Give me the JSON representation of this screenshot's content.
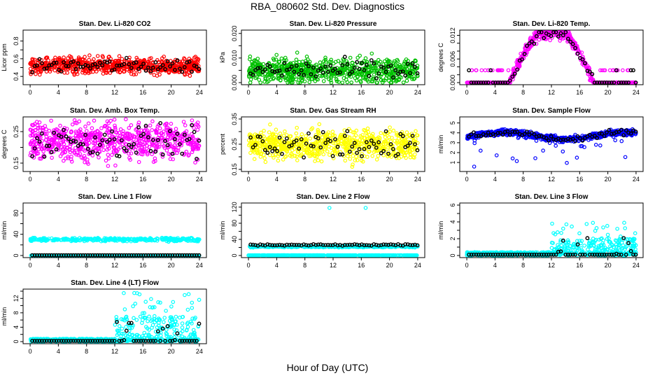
{
  "title": "RBA_080602  Std. Dev. Diagnostics",
  "xlabel": "Hour of Day (UTC)",
  "chart_data": [
    {
      "type": "scatter",
      "title": "Stan. Dev. Li-820 CO2",
      "ylabel": "Licor ppm",
      "color": "#ff0000",
      "ylim": [
        0.33,
        0.9
      ],
      "ticks": [
        0.4,
        0.5,
        0.6,
        0.7,
        0.8
      ],
      "labels": [
        "0.4",
        "0.6",
        "0.8"
      ],
      "xlim": [
        0,
        24
      ],
      "xticks": [
        "0",
        "4",
        "8",
        "12",
        "16",
        "20",
        "24"
      ],
      "model": {
        "kind": "flat",
        "mean": 0.52,
        "sd": 0.045
      },
      "black_mean": 0.52
    },
    {
      "type": "scatter",
      "title": "Stan. Dev. Li-820 Pressure",
      "ylabel": "kPa",
      "color": "#00c000",
      "ylim": [
        0,
        0.0205
      ],
      "ticks": [
        0,
        0.005,
        0.01,
        0.015,
        0.02
      ],
      "labels": [
        "0.000",
        "0.010",
        "0.020"
      ],
      "xlim": [
        0,
        24
      ],
      "xticks": [
        "0",
        "4",
        "8",
        "12",
        "16",
        "20",
        "24"
      ],
      "model": {
        "kind": "flat",
        "mean": 0.005,
        "sd": 0.0025
      },
      "black_mean": 0.005
    },
    {
      "type": "scatter",
      "title": "Stan. Dev. Li-820 Temp.",
      "ylabel": "degrees C",
      "color": "#ff00ff",
      "ylim": [
        0,
        0.0128
      ],
      "ticks": [
        0,
        0.002,
        0.004,
        0.006,
        0.008,
        0.01,
        0.012
      ],
      "labels": [
        "0.000",
        "0.006",
        "0.012"
      ],
      "xlim": [
        0,
        24
      ],
      "xticks": [
        "0",
        "4",
        "8",
        "12",
        "16",
        "20",
        "24"
      ],
      "model": {
        "kind": "bell",
        "peak": 0.0125,
        "start": 6,
        "end": 18
      },
      "black_mean": 0
    },
    {
      "type": "scatter",
      "title": "Stan. Dev. Amb. Box Temp.",
      "ylabel": "degrees C",
      "color": "#ff00ff",
      "ylim": [
        0.13,
        0.29
      ],
      "ticks": [
        0.15,
        0.2,
        0.25
      ],
      "labels": [
        "0.15",
        "0.25"
      ],
      "xlim": [
        0,
        24
      ],
      "xticks": [
        "0",
        "4",
        "8",
        "12",
        "16",
        "20",
        "24"
      ],
      "model": {
        "kind": "flat",
        "mean": 0.22,
        "sd": 0.03
      },
      "black_mean": 0.22
    },
    {
      "type": "scatter",
      "title": "Stan. Dev. Gas Stream RH",
      "ylabel": "percent",
      "color": "#ffff00",
      "ylim": [
        0.15,
        0.35
      ],
      "ticks": [
        0.15,
        0.2,
        0.25,
        0.3,
        0.35
      ],
      "labels": [
        "0.15",
        "0.25",
        "0.35"
      ],
      "xlim": [
        0,
        24
      ],
      "xticks": [
        "0",
        "4",
        "8",
        "12",
        "16",
        "20",
        "24"
      ],
      "model": {
        "kind": "flat",
        "mean": 0.25,
        "sd": 0.03
      },
      "black_mean": 0.25
    },
    {
      "type": "scatter",
      "title": "Stan. Dev. Sample Flow",
      "ylabel": "ml/min",
      "color": "#0000ff",
      "ylim": [
        0.3,
        5.4
      ],
      "ticks": [
        1,
        2,
        3,
        4,
        5
      ],
      "labels": [
        "1",
        "2",
        "3",
        "4",
        "5"
      ],
      "xlim": [
        0,
        24
      ],
      "xticks": [
        "0",
        "4",
        "8",
        "12",
        "16",
        "20",
        "24"
      ],
      "model": {
        "kind": "wave",
        "mean": 3.7,
        "sd": 0.15
      },
      "black_mean": 3.7
    },
    {
      "type": "scatter",
      "title": "Stan. Dev. Line 1 Flow",
      "ylabel": "ml/min",
      "color": "#00ffff",
      "ylim": [
        0,
        95
      ],
      "ticks": [
        0,
        20,
        40,
        60,
        80
      ],
      "labels": [
        "0",
        "40",
        "80"
      ],
      "xlim": [
        0,
        24
      ],
      "xticks": [
        "0",
        "4",
        "8",
        "12",
        "16",
        "20",
        "24"
      ],
      "model": {
        "kind": "band",
        "mean": 30,
        "sd": 1.5
      },
      "black_mean": 0
    },
    {
      "type": "scatter",
      "title": "Stan. Dev. Line 2 Flow",
      "ylabel": "ml/min",
      "color": "#00ffff",
      "ylim": [
        0,
        125
      ],
      "ticks": [
        0,
        20,
        40,
        60,
        80,
        100,
        120
      ],
      "labels": [
        "0",
        "40",
        "80",
        "120"
      ],
      "xlim": [
        0,
        24
      ],
      "xticks": [
        "0",
        "4",
        "8",
        "12",
        "16",
        "20",
        "24"
      ],
      "model": {
        "kind": "twoband",
        "mean": 22,
        "sd": 1
      },
      "black_mean": 26
    },
    {
      "type": "scatter",
      "title": "Stan. Dev. Line 3 Flow",
      "ylabel": "ml/min",
      "color": "#00ffff",
      "ylim": [
        0,
        6
      ],
      "ticks": [
        0,
        1,
        2,
        3,
        4,
        5,
        6
      ],
      "labels": [
        "0",
        "2",
        "4",
        "6"
      ],
      "xlim": [
        0,
        24
      ],
      "xticks": [
        "0",
        "4",
        "8",
        "12",
        "16",
        "20",
        "24"
      ],
      "model": {
        "kind": "spread",
        "low": 0.2,
        "high": 2,
        "from": 12
      },
      "black_mean": 0.1
    },
    {
      "type": "scatter",
      "title": "Stan. Dev. Line 4 (LT) Flow",
      "ylabel": "ml/min",
      "color": "#00ffff",
      "ylim": [
        0,
        14
      ],
      "ticks": [
        0,
        2,
        4,
        6,
        8,
        10,
        12,
        14
      ],
      "labels": [
        "0",
        "4",
        "8",
        "12"
      ],
      "xlim": [
        0,
        24
      ],
      "xticks": [
        "0",
        "4",
        "8",
        "12",
        "16",
        "20",
        "24"
      ],
      "model": {
        "kind": "spread",
        "low": 0.4,
        "high": 7,
        "from": 12
      },
      "black_mean": 0.2
    }
  ]
}
